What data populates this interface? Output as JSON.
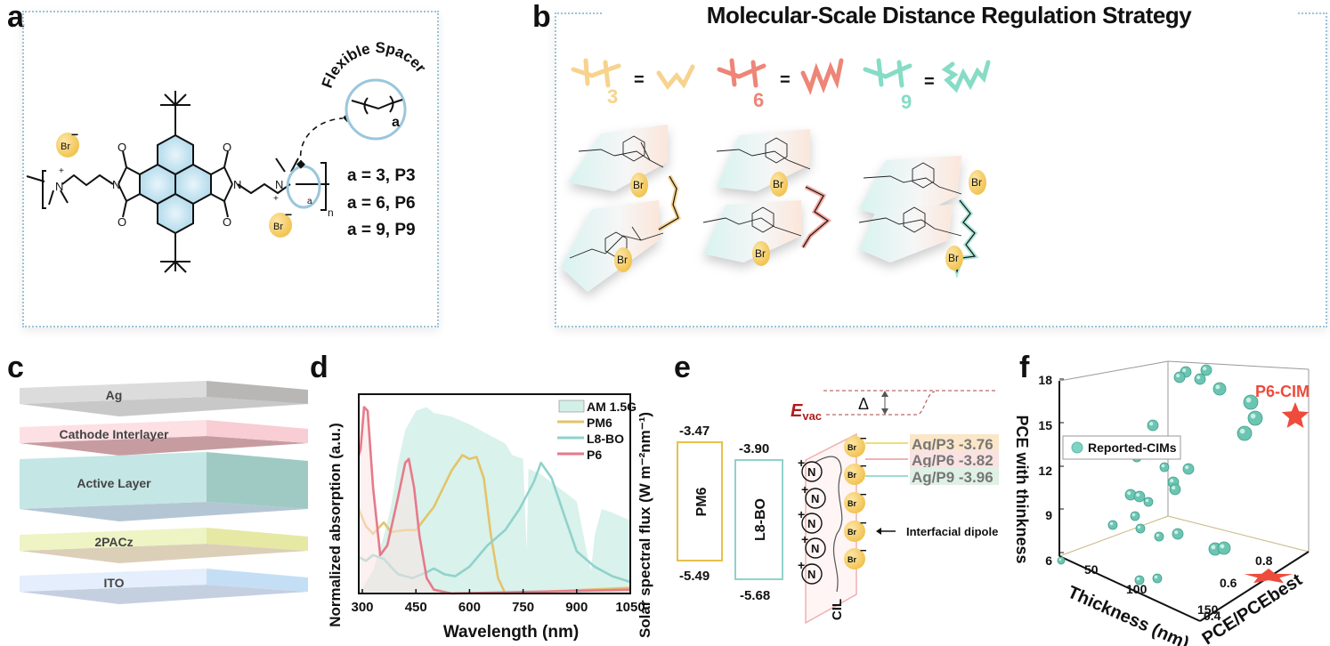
{
  "panels": {
    "a": {
      "letter": "a",
      "spacer_label": "Flexible Spacer",
      "subscript_a": "a",
      "subscript_n": "n",
      "counter_ion": "Br",
      "cation_charge": "+",
      "anion_charge": "−",
      "atom_N": "N",
      "atom_O": "O",
      "variants": [
        {
          "text": "a = 3, P3"
        },
        {
          "text": "a = 6, P6"
        },
        {
          "text": "a = 9, P9"
        }
      ]
    },
    "b": {
      "letter": "b",
      "title": "Molecular-Scale Distance Regulation Strategy",
      "equals": "=",
      "spacers": [
        {
          "n": "3",
          "color": "#f7d38d"
        },
        {
          "n": "6",
          "color": "#ee8577"
        },
        {
          "n": "9",
          "color": "#86dcc6"
        }
      ],
      "ion": "Br"
    },
    "c": {
      "letter": "c",
      "layers": [
        {
          "label": "Ag",
          "color": "#dcdcdc",
          "side": "#b9b6b6",
          "bottom": "#c8c8c8"
        },
        {
          "label": "Cathode Interlayer",
          "color": "#fde0e4",
          "side": "#f8cdd4",
          "bottom": "#c79ca0"
        },
        {
          "label": "Active Layer",
          "color": "#c4e6e4",
          "side": "#9fcac4",
          "bottom": "#b4c6d4"
        },
        {
          "label": "2PACz",
          "color": "#eef4c4",
          "side": "#e6e9a4",
          "bottom": "#dccfb8"
        },
        {
          "label": "ITO",
          "color": "#e4eefc",
          "side": "#c4dff5",
          "bottom": "#c4d0e0"
        }
      ]
    },
    "d": {
      "letter": "d",
      "ylabel_left": "Normalized absorption (a.u.)",
      "ylabel_right": "Solar spectral flux (W m⁻²nm⁻¹)"
    },
    "e": {
      "letter": "e",
      "evac": "E",
      "evac_sub": "vac",
      "delta": "Δ",
      "donor": {
        "name": "PM6",
        "lumo": "-3.47",
        "homo": "-5.49",
        "color": "#e8c04a"
      },
      "acceptor": {
        "name": "L8-BO",
        "lumo": "-3.90",
        "homo": "-5.68",
        "color": "#8fd2cc"
      },
      "cil_label": "CIL",
      "cation": "N",
      "anion": "Br",
      "work_functions": [
        {
          "label": "Ag/P3 -3.76",
          "line": "#e8d24a",
          "bg": "#fbe6c8"
        },
        {
          "label": "Ag/P6 -3.82",
          "line": "#e89a9a",
          "bg": "#f9e2e2"
        },
        {
          "label": "Ag/P9 -3.96",
          "line": "#7fcfcb",
          "bg": "#dff0e4"
        }
      ],
      "dipole_label": "Interfacial dipole"
    },
    "f": {
      "letter": "f",
      "zlabel": "PCE with thinkness",
      "xlabel": "Thickness (nm)",
      "ylabel": "PCE/PCEbest",
      "z_ticks": [
        "18",
        "15",
        "12",
        "9",
        "6"
      ],
      "x_ticks": [
        "50",
        "100",
        "150"
      ],
      "y_ticks": [
        "0.4",
        "0.6",
        "0.8"
      ],
      "legend": "Reported-CIMs",
      "highlight": "P6-CIM",
      "highlight_color": "#ee4b3c",
      "point_color": "#5ab9a4"
    }
  },
  "chart_data": {
    "type": "line",
    "title": "",
    "xlabel": "Wavelength (nm)",
    "ylabel": "Normalized absorption (a.u.)",
    "y2label": "Solar spectral flux (W m-2 nm-1)",
    "xlim": [
      290,
      1050
    ],
    "ylim": [
      0,
      1.0
    ],
    "x_ticks": [
      "300",
      "450",
      "600",
      "750",
      "900",
      "1050"
    ],
    "legend_position": "top-right",
    "series": [
      {
        "name": "AM 1.5G",
        "kind": "area",
        "color": "#bfeade",
        "x": [
          290,
          330,
          360,
          380,
          400,
          420,
          450,
          480,
          500,
          550,
          600,
          650,
          700,
          720,
          750,
          760,
          765,
          800,
          850,
          900,
          930,
          940,
          950,
          970,
          1000,
          1050
        ],
        "y": [
          0.0,
          0.12,
          0.3,
          0.45,
          0.68,
          0.85,
          0.95,
          0.97,
          0.94,
          0.92,
          0.88,
          0.83,
          0.78,
          0.72,
          0.7,
          0.22,
          0.65,
          0.62,
          0.55,
          0.48,
          0.2,
          0.12,
          0.3,
          0.44,
          0.42,
          0.38
        ]
      },
      {
        "name": "PM6",
        "kind": "line",
        "color": "#e3c46a",
        "x": [
          290,
          310,
          330,
          360,
          380,
          420,
          450,
          500,
          550,
          580,
          600,
          620,
          640,
          660,
          680,
          700,
          1050
        ],
        "y": [
          0.44,
          0.35,
          0.31,
          0.37,
          0.32,
          0.33,
          0.33,
          0.45,
          0.64,
          0.72,
          0.7,
          0.71,
          0.6,
          0.3,
          0.08,
          0.0,
          0.03
        ]
      },
      {
        "name": "L8-BO",
        "kind": "line",
        "color": "#8fd2cc",
        "x": [
          290,
          310,
          330,
          360,
          400,
          440,
          480,
          500,
          530,
          560,
          600,
          650,
          700,
          740,
          780,
          800,
          830,
          870,
          900,
          950,
          1000,
          1050
        ],
        "y": [
          0.19,
          0.17,
          0.2,
          0.18,
          0.1,
          0.08,
          0.11,
          0.13,
          0.1,
          0.09,
          0.14,
          0.25,
          0.33,
          0.44,
          0.58,
          0.68,
          0.6,
          0.38,
          0.22,
          0.14,
          0.09,
          0.06
        ]
      },
      {
        "name": "P6",
        "kind": "line",
        "color": "#e67a8a",
        "x": [
          290,
          295,
          305,
          315,
          330,
          350,
          370,
          400,
          420,
          430,
          445,
          460,
          480,
          500,
          550,
          1050
        ],
        "y": [
          0.72,
          0.75,
          0.97,
          0.95,
          0.55,
          0.2,
          0.25,
          0.5,
          0.68,
          0.7,
          0.55,
          0.3,
          0.08,
          0.02,
          0.0,
          0.02
        ]
      }
    ]
  }
}
